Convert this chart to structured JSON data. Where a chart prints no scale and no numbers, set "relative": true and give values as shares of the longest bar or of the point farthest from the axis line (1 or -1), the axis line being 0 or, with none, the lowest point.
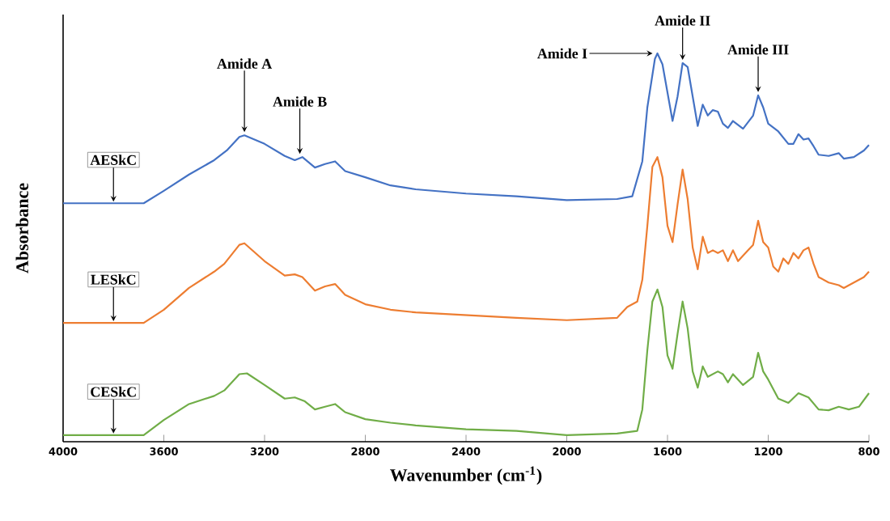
{
  "chart_data": {
    "type": "line",
    "relative": true,
    "xlabel": "Wavenumber (cm$^{-1}$)",
    "ylabel": "Absorbance",
    "xlim": [
      4000,
      800
    ],
    "xticks": [
      4000,
      3600,
      3200,
      2800,
      2400,
      2000,
      1600,
      1200,
      800
    ],
    "grid": false,
    "legend": false,
    "marker": "none",
    "line_style": "solid",
    "series": [
      {
        "name": "AESkC",
        "color": "#4472c4",
        "x": [
          4000,
          3800,
          3680,
          3600,
          3500,
          3400,
          3350,
          3300,
          3280,
          3200,
          3120,
          3080,
          3050,
          3000,
          2960,
          2920,
          2880,
          2800,
          2700,
          2600,
          2400,
          2200,
          2000,
          1800,
          1740,
          1700,
          1680,
          1650,
          1640,
          1620,
          1580,
          1560,
          1540,
          1520,
          1500,
          1480,
          1460,
          1440,
          1420,
          1400,
          1380,
          1360,
          1340,
          1300,
          1260,
          1240,
          1220,
          1200,
          1160,
          1120,
          1100,
          1080,
          1060,
          1040,
          1020,
          1000,
          960,
          920,
          900,
          860,
          820,
          800
        ],
        "values": [
          0.614,
          0.614,
          0.614,
          0.646,
          0.688,
          0.725,
          0.75,
          0.785,
          0.789,
          0.767,
          0.736,
          0.725,
          0.733,
          0.706,
          0.715,
          0.722,
          0.697,
          0.681,
          0.66,
          0.65,
          0.639,
          0.632,
          0.622,
          0.625,
          0.632,
          0.722,
          0.861,
          0.986,
          1,
          0.972,
          0.826,
          0.889,
          0.975,
          0.965,
          0.889,
          0.813,
          0.868,
          0.84,
          0.854,
          0.85,
          0.819,
          0.808,
          0.826,
          0.806,
          0.84,
          0.892,
          0.861,
          0.819,
          0.799,
          0.767,
          0.767,
          0.792,
          0.778,
          0.781,
          0.761,
          0.739,
          0.736,
          0.743,
          0.729,
          0.733,
          0.75,
          0.764
        ]
      },
      {
        "name": "LESkC",
        "color": "#ed7d31",
        "x": [
          4000,
          3800,
          3680,
          3600,
          3500,
          3400,
          3360,
          3300,
          3280,
          3200,
          3120,
          3080,
          3050,
          3000,
          2960,
          2920,
          2880,
          2800,
          2700,
          2600,
          2400,
          2200,
          2000,
          1800,
          1760,
          1720,
          1700,
          1680,
          1660,
          1640,
          1620,
          1600,
          1580,
          1560,
          1540,
          1520,
          1500,
          1480,
          1460,
          1440,
          1420,
          1400,
          1380,
          1360,
          1340,
          1320,
          1280,
          1260,
          1240,
          1220,
          1200,
          1180,
          1160,
          1140,
          1120,
          1100,
          1080,
          1060,
          1040,
          1020,
          1000,
          960,
          920,
          900,
          860,
          820,
          800
        ],
        "values": [
          0.306,
          0.306,
          0.306,
          0.34,
          0.396,
          0.438,
          0.458,
          0.507,
          0.511,
          0.465,
          0.428,
          0.431,
          0.424,
          0.389,
          0.4,
          0.406,
          0.378,
          0.354,
          0.34,
          0.333,
          0.326,
          0.319,
          0.313,
          0.319,
          0.347,
          0.361,
          0.417,
          0.556,
          0.708,
          0.733,
          0.681,
          0.556,
          0.514,
          0.611,
          0.701,
          0.625,
          0.5,
          0.444,
          0.528,
          0.486,
          0.493,
          0.486,
          0.493,
          0.465,
          0.493,
          0.465,
          0.493,
          0.507,
          0.569,
          0.514,
          0.5,
          0.451,
          0.438,
          0.472,
          0.458,
          0.486,
          0.472,
          0.493,
          0.5,
          0.458,
          0.424,
          0.41,
          0.403,
          0.396,
          0.41,
          0.424,
          0.438
        ]
      },
      {
        "name": "CESkC",
        "color": "#70ad47",
        "x": [
          4000,
          3800,
          3680,
          3600,
          3500,
          3400,
          3360,
          3300,
          3270,
          3200,
          3120,
          3080,
          3040,
          3000,
          2960,
          2920,
          2880,
          2800,
          2700,
          2600,
          2400,
          2200,
          2000,
          1800,
          1720,
          1700,
          1680,
          1660,
          1640,
          1620,
          1600,
          1580,
          1560,
          1540,
          1520,
          1500,
          1480,
          1460,
          1440,
          1400,
          1380,
          1360,
          1340,
          1300,
          1260,
          1240,
          1220,
          1200,
          1160,
          1120,
          1080,
          1040,
          1000,
          960,
          920,
          880,
          840,
          800
        ],
        "values": [
          0.017,
          0.017,
          0.017,
          0.056,
          0.097,
          0.118,
          0.132,
          0.174,
          0.176,
          0.146,
          0.111,
          0.114,
          0.104,
          0.083,
          0.09,
          0.097,
          0.076,
          0.058,
          0.049,
          0.042,
          0.032,
          0.028,
          0.017,
          0.021,
          0.028,
          0.083,
          0.236,
          0.361,
          0.392,
          0.347,
          0.222,
          0.188,
          0.278,
          0.361,
          0.292,
          0.181,
          0.139,
          0.194,
          0.167,
          0.181,
          0.174,
          0.153,
          0.174,
          0.146,
          0.167,
          0.229,
          0.181,
          0.16,
          0.111,
          0.1,
          0.125,
          0.114,
          0.083,
          0.081,
          0.09,
          0.083,
          0.09,
          0.125
        ]
      }
    ],
    "annotations": [
      {
        "text": "Amide A",
        "x": 3280,
        "y": 0.789
      },
      {
        "text": "Amide B",
        "x": 3060,
        "y": 0.733
      },
      {
        "text": "Amide I",
        "x": 1640,
        "y": 1
      },
      {
        "text": "Amide II",
        "x": 1540,
        "y": 0.975
      },
      {
        "text": "Amide III",
        "x": 1240,
        "y": 0.892
      }
    ]
  }
}
